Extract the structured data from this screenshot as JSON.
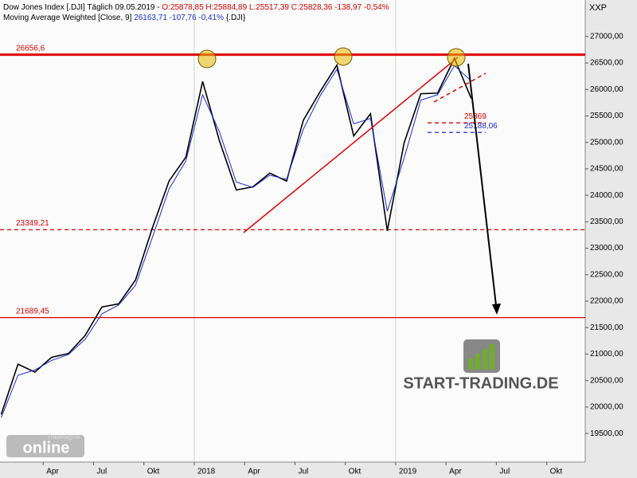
{
  "chart_data": {
    "type": "line",
    "header": [
      {
        "text": "Dow Jones Index [.DJI]  Täglich 09.05.2019 -",
        "color": "#000000"
      },
      {
        "text": "O:25878,85 H:25884,89 L:25517,39 C:25828,36 -138,97 -0,54%",
        "color": "#d40000"
      }
    ],
    "header2": [
      {
        "text": "Moving Average Weighted [Close, 9]",
        "color": "#000000"
      },
      {
        "text": "26163,71 -107,76 -0,41%",
        "color": "#1a2fd0"
      },
      {
        "text": "{.DJI}",
        "color": "#000000"
      }
    ],
    "symbol": "XXP",
    "watermark": "START-TRADING.DE",
    "badge_small": "Tradesignal",
    "badge_big": "online",
    "x": [
      "2017-01",
      "2017-02",
      "2017-03",
      "2017-04",
      "2017-05",
      "2017-06",
      "2017-07",
      "2017-08",
      "2017-09",
      "2017-10",
      "2017-11",
      "2017-12",
      "2018-01",
      "2018-02",
      "2018-03",
      "2018-04",
      "2018-05",
      "2018-06",
      "2018-07",
      "2018-08",
      "2018-09",
      "2018-10",
      "2018-11",
      "2018-12",
      "2019-01",
      "2019-02",
      "2019-03",
      "2019-04",
      "2019-05"
    ],
    "series": [
      {
        "name": "Dow Jones Index",
        "color": "#000000",
        "values": [
          19860,
          20810,
          20660,
          20940,
          21010,
          21350,
          21890,
          21950,
          22400,
          23380,
          24270,
          24720,
          26150,
          25030,
          24100,
          24160,
          24420,
          24270,
          25420,
          25960,
          26460,
          25120,
          25540,
          23330,
          24990,
          25920,
          25930,
          26590,
          25830
        ]
      },
      {
        "name": "Moving Average Weighted",
        "color": "#1a2fd0",
        "values": [
          19800,
          20600,
          20700,
          20880,
          20990,
          21280,
          21760,
          21930,
          22300,
          23200,
          24120,
          24650,
          25900,
          25200,
          24250,
          24150,
          24380,
          24300,
          25250,
          25880,
          26380,
          25350,
          25450,
          23700,
          24700,
          25800,
          25900,
          26450,
          26160
        ]
      }
    ],
    "ylim": [
      18960,
      27690
    ],
    "yticks": [
      {
        "value": 19500,
        "label": "19500,00"
      },
      {
        "value": 20000,
        "label": "20000,00"
      },
      {
        "value": 20500,
        "label": "20500,00"
      },
      {
        "value": 21000,
        "label": "21000,00"
      },
      {
        "value": 21500,
        "label": "21500,00"
      },
      {
        "value": 22000,
        "label": "22000,00"
      },
      {
        "value": 22500,
        "label": "22500,00"
      },
      {
        "value": 23000,
        "label": "23000,00"
      },
      {
        "value": 23500,
        "label": "23500,00"
      },
      {
        "value": 24000,
        "label": "24000,00"
      },
      {
        "value": 24500,
        "label": "24500,00"
      },
      {
        "value": 25000,
        "label": "25000,00"
      },
      {
        "value": 25500,
        "label": "25500,00"
      },
      {
        "value": 26000,
        "label": "26000,00"
      },
      {
        "value": 26500,
        "label": "26500,00"
      },
      {
        "value": 27000,
        "label": "27000,00"
      }
    ],
    "xticks": [
      {
        "value": "2017-04",
        "label": "Apr"
      },
      {
        "value": "2017-07",
        "label": "Jul"
      },
      {
        "value": "2017-10",
        "label": "Okt"
      },
      {
        "value": "2018-01",
        "label": "2018"
      },
      {
        "value": "2018-04",
        "label": "Apr"
      },
      {
        "value": "2018-07",
        "label": "Jul"
      },
      {
        "value": "2018-10",
        "label": "Okt"
      },
      {
        "value": "2019-01",
        "label": "2019"
      },
      {
        "value": "2019-04",
        "label": "Apr"
      },
      {
        "value": "2019-07",
        "label": "Jul"
      },
      {
        "value": "2019-10",
        "label": "Okt"
      }
    ],
    "levels": [
      {
        "value": 26656.6,
        "label": "26656,6",
        "color": "#e00000",
        "dash": false,
        "full": true
      },
      {
        "value": 23349.21,
        "label": "23349,21",
        "color": "#e00000",
        "dash": true,
        "full": true
      },
      {
        "value": 21689.45,
        "label": "21689,45",
        "color": "#e00000",
        "dash": false,
        "full": true
      },
      {
        "value": 25369,
        "label": "25369",
        "color": "#e00000",
        "dash": true,
        "full": false
      },
      {
        "value": 25188.06,
        "label": "25188,06",
        "color": "#1a2fd0",
        "dash": true,
        "full": false
      }
    ]
  }
}
